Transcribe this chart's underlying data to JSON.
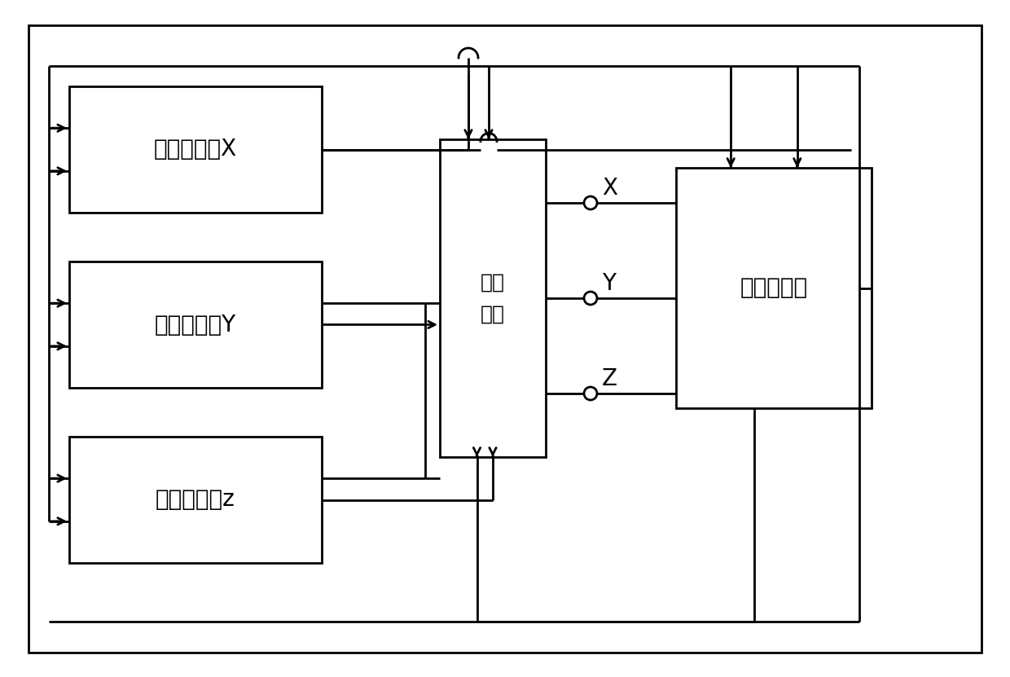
{
  "background_color": "#ffffff",
  "line_color": "#000000",
  "lw": 2.0,
  "fig_w": 12.4,
  "fig_h": 8.31,
  "dpi": 100,
  "label_ix": "迭代积分器X",
  "label_iy": "迭代积分器Y",
  "label_iz": "迭代积分器z",
  "label_out": "输出\n模块",
  "label_comb": "组合乘法器",
  "font_size": 20,
  "font_size_out": 18
}
